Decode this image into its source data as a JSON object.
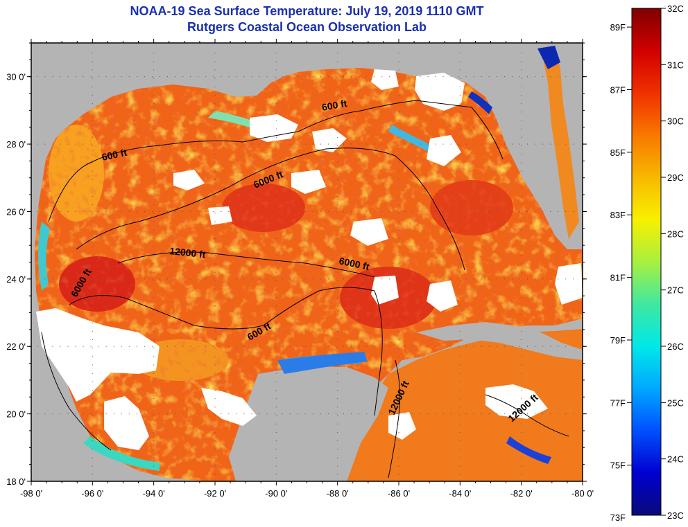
{
  "title": {
    "line1": "NOAA-19 Sea Surface Temperature:  July 19, 2019 1110 GMT",
    "line2": "Rutgers Coastal Ocean Observation Lab"
  },
  "axes": {
    "x_ticks": [
      "-98 0'",
      "-96 0'",
      "-94 0'",
      "-92 0'",
      "-90 0'",
      "-88 0'",
      "-86 0'",
      "-84 0'",
      "-82 0'",
      "-80 0'"
    ],
    "y_ticks": [
      "30 0'",
      "28 0'",
      "26 0'",
      "24 0'",
      "22 0'",
      "20 0'",
      "18 0'"
    ],
    "lon_range": [
      -98,
      -80
    ],
    "lat_range": [
      18,
      31
    ]
  },
  "contour_labels": [
    "600 ft",
    "600 ft",
    "6000 ft",
    "12000 ft",
    "6000 ft",
    "6000 ft",
    "600 ft",
    "12000 ft",
    "12000 ft"
  ],
  "colorbar": {
    "f_labels": [
      "89F",
      "87F",
      "85F",
      "83F",
      "81F",
      "79F",
      "77F",
      "75F",
      "73F"
    ],
    "c_labels": [
      "32C",
      "31C",
      "30C",
      "29C",
      "28C",
      "27C",
      "26C",
      "25C",
      "24C",
      "23C"
    ],
    "colors": [
      "#0a0a7a",
      "#0000d0",
      "#0050ff",
      "#00a8ff",
      "#00e8e8",
      "#40e8a0",
      "#a8f040",
      "#f8f000",
      "#f8b800",
      "#f87800",
      "#f03000",
      "#d00000",
      "#800000"
    ]
  },
  "colors": {
    "land": "#b4b4b4",
    "cloud": "#ffffff",
    "sea_warm": "#f06418",
    "sea_hot": "#e03a1a",
    "title": "#1a2fb0"
  }
}
